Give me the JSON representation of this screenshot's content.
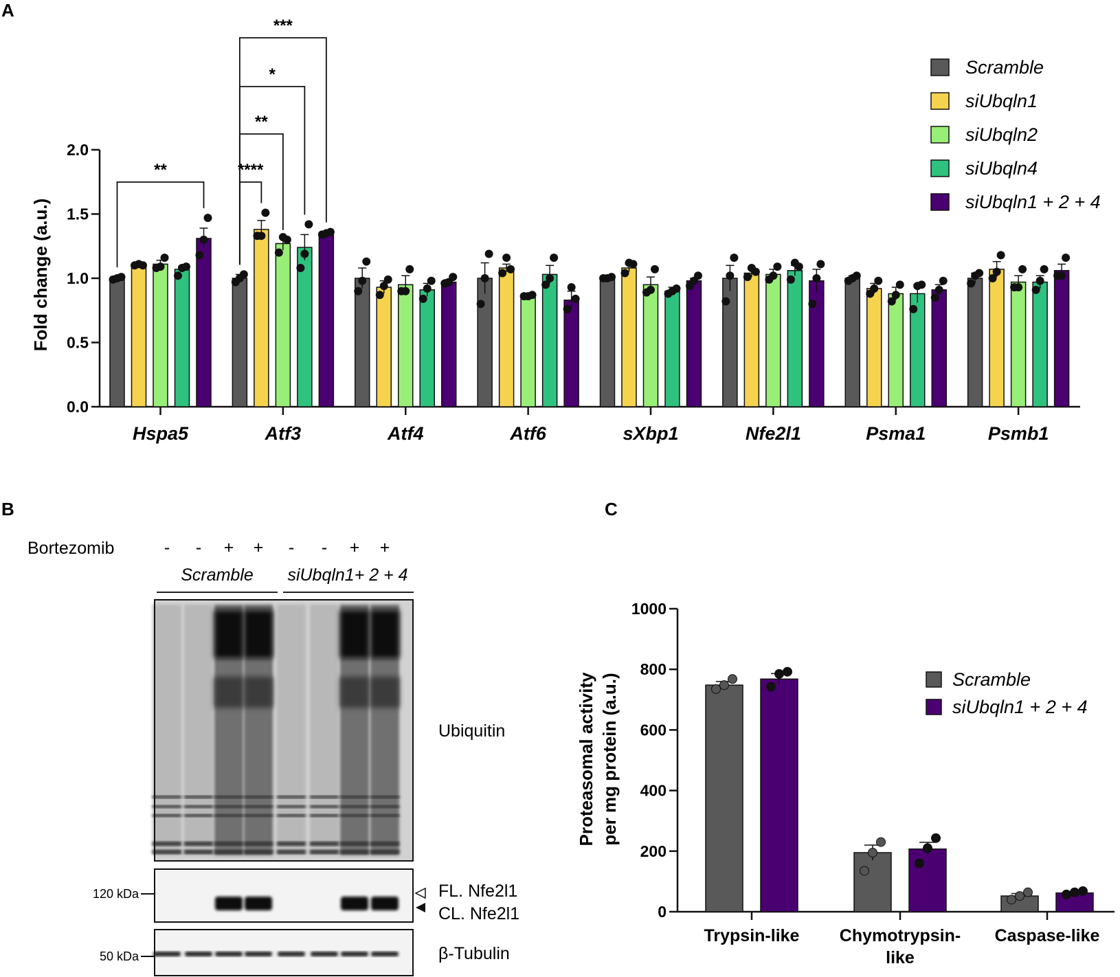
{
  "panels": {
    "a": "A",
    "b": "B",
    "c": "C"
  },
  "colors": {
    "scramble": "#595959",
    "siUbqln1": "#f5d34f",
    "siUbqln2": "#99ee77",
    "siUbqln4": "#2ec27e",
    "combo": "#4b0072"
  },
  "chart_data": [
    {
      "id": "A",
      "type": "bar",
      "ylabel": "Fold change (a.u.)",
      "xlabel": "",
      "ylim": [
        0,
        2.0
      ],
      "yticks": [
        "0.0",
        "0.5",
        "1.0",
        "1.5",
        "2.0"
      ],
      "categories": [
        "Hspa5",
        "Atf3",
        "Atf4",
        "Atf6",
        "sXbp1",
        "Nfe2l1",
        "Psma1",
        "Psmb1"
      ],
      "legend_position": "top-right",
      "series": [
        {
          "name": "Scramble",
          "color": "#595959",
          "values": [
            1.0,
            1.0,
            1.0,
            1.0,
            1.0,
            1.0,
            1.0,
            1.0
          ],
          "errors": [
            0.01,
            0.03,
            0.08,
            0.12,
            0.01,
            0.1,
            0.02,
            0.04
          ],
          "points": [
            [
              0.99,
              1.0,
              1.01
            ],
            [
              0.97,
              1.0,
              1.03
            ],
            [
              0.9,
              0.98,
              1.13
            ],
            [
              0.8,
              1.0,
              1.19
            ],
            [
              1.0,
              1.0,
              1.01
            ],
            [
              0.82,
              1.02,
              1.16
            ],
            [
              0.98,
              1.0,
              1.02
            ],
            [
              0.96,
              1.02,
              1.04
            ]
          ]
        },
        {
          "name": "siUbqln1",
          "color": "#f5d34f",
          "values": [
            1.1,
            1.38,
            0.93,
            1.08,
            1.08,
            1.04,
            0.92,
            1.07
          ],
          "errors": [
            0.01,
            0.07,
            0.05,
            0.03,
            0.03,
            0.03,
            0.04,
            0.06
          ],
          "points": [
            [
              1.1,
              1.11,
              1.1
            ],
            [
              1.33,
              1.33,
              1.51
            ],
            [
              0.87,
              0.94,
              0.99
            ],
            [
              1.04,
              1.16,
              1.07
            ],
            [
              1.04,
              1.12,
              1.11
            ],
            [
              1.01,
              1.08,
              1.05
            ],
            [
              0.88,
              0.92,
              0.98
            ],
            [
              1.0,
              1.05,
              1.18
            ]
          ]
        },
        {
          "name": "siUbqln2",
          "color": "#99ee77",
          "values": [
            1.11,
            1.27,
            0.95,
            0.86,
            0.95,
            1.03,
            0.88,
            0.97
          ],
          "errors": [
            0.03,
            0.05,
            0.07,
            0.01,
            0.06,
            0.04,
            0.05,
            0.05
          ],
          "points": [
            [
              1.08,
              1.09,
              1.16
            ],
            [
              1.2,
              1.32,
              1.3
            ],
            [
              0.9,
              0.9,
              1.07
            ],
            [
              0.86,
              0.86,
              0.87
            ],
            [
              0.89,
              0.91,
              1.07
            ],
            [
              0.99,
              1.02,
              1.09
            ],
            [
              0.82,
              0.87,
              0.95
            ],
            [
              0.93,
              0.93,
              1.07
            ]
          ]
        },
        {
          "name": "siUbqln4",
          "color": "#2ec27e",
          "values": [
            1.07,
            1.24,
            0.91,
            1.03,
            0.9,
            1.06,
            0.88,
            0.97
          ],
          "errors": [
            0.02,
            0.1,
            0.05,
            0.07,
            0.03,
            0.04,
            0.07,
            0.05
          ],
          "points": [
            [
              1.02,
              1.08,
              1.09
            ],
            [
              1.08,
              1.19,
              1.42
            ],
            [
              0.84,
              0.92,
              0.98
            ],
            [
              0.95,
              1.0,
              1.16
            ],
            [
              0.88,
              0.9,
              0.92
            ],
            [
              0.99,
              1.12,
              1.09
            ],
            [
              0.76,
              0.94,
              0.95
            ],
            [
              0.91,
              0.98,
              1.07
            ]
          ]
        },
        {
          "name": "siUbqln1 + 2 + 4",
          "color": "#4b0072",
          "values": [
            1.31,
            1.34,
            0.97,
            0.83,
            0.98,
            0.98,
            0.91,
            1.06
          ],
          "errors": [
            0.08,
            0.02,
            0.02,
            0.07,
            0.02,
            0.09,
            0.04,
            0.05
          ],
          "points": [
            [
              1.18,
              1.3,
              1.47
            ],
            [
              1.34,
              1.35,
              1.36
            ],
            [
              0.96,
              0.97,
              1.01
            ],
            [
              0.76,
              0.93,
              0.84
            ],
            [
              0.94,
              0.98,
              1.02
            ],
            [
              0.8,
              1.0,
              1.11
            ],
            [
              0.85,
              0.91,
              0.98
            ],
            [
              1.02,
              1.02,
              1.16
            ]
          ]
        }
      ],
      "significance": [
        {
          "label": "**",
          "category": 0,
          "from_series": 0,
          "to_series": 4
        },
        {
          "label": "****",
          "category": 1,
          "from_series": 0,
          "to_series": 1
        },
        {
          "label": "**",
          "category": 1,
          "from_series": 0,
          "to_series": 2
        },
        {
          "label": "*",
          "category": 1,
          "from_series": 0,
          "to_series": 3
        },
        {
          "label": "***",
          "category": 1,
          "from_series": 0,
          "to_series": 4
        }
      ]
    },
    {
      "id": "C",
      "type": "bar",
      "ylabel_lines": [
        "Proteasomal activity",
        "per mg protein (a.u.)"
      ],
      "xlabel": "",
      "ylim": [
        0,
        1000
      ],
      "yticks": [
        "0",
        "200",
        "400",
        "600",
        "800",
        "1000"
      ],
      "categories": [
        "Trypsin-like",
        "Chymotrypsin-like",
        "Caspase-like"
      ],
      "category_label_lines": [
        [
          "Trypsin-like"
        ],
        [
          "Chymotrypsin-",
          "like"
        ],
        [
          "Caspase-like"
        ]
      ],
      "legend_position": "top-right",
      "series": [
        {
          "name": "Scramble",
          "color": "#595959",
          "values": [
            748,
            195,
            52
          ],
          "errors": [
            12,
            25,
            8
          ],
          "points": [
            [
              735,
              748,
              768
            ],
            [
              135,
              195,
              230
            ],
            [
              40,
              52,
              64
            ]
          ]
        },
        {
          "name": "siUbqln1 + 2 + 4",
          "color": "#4b0072",
          "values": [
            768,
            207,
            62
          ],
          "errors": [
            18,
            22,
            5
          ],
          "points": [
            [
              742,
              785,
              792
            ],
            [
              160,
              210,
              243
            ],
            [
              57,
              64,
              68
            ]
          ]
        }
      ]
    }
  ],
  "blot": {
    "treatment_label": "Bortezomib",
    "treatment_signs": [
      "-",
      "-",
      "+",
      "+",
      "-",
      "-",
      "+",
      "+"
    ],
    "group_labels": [
      "Scramble",
      "siUbqln1+ 2 + 4"
    ],
    "ubiquitin_label": "Ubiquitin",
    "nfe2l1_marker": "120 kDa",
    "fl_label": "FL. Nfe2l1",
    "cl_label": "CL. Nfe2l1",
    "tubulin_marker": "50 kDa",
    "tubulin_label": "β-Tubulin"
  }
}
